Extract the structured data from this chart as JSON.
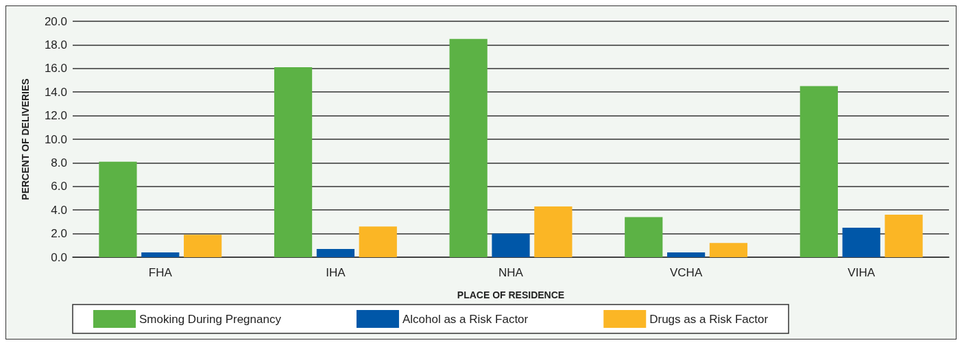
{
  "chart_data": {
    "type": "bar",
    "xlabel": "PLACE OF RESIDENCE",
    "ylabel": "PERCENT OF DELIVERIES",
    "categories": [
      "FHA",
      "IHA",
      "NHA",
      "VCHA",
      "VIHA"
    ],
    "series": [
      {
        "name": "Smoking During Pregnancy",
        "color": "#5cb245",
        "values": [
          8.1,
          16.1,
          18.5,
          3.4,
          14.5
        ]
      },
      {
        "name": "Alcohol as a Risk Factor",
        "color": "#0057a8",
        "values": [
          0.4,
          0.7,
          2.0,
          0.4,
          2.5
        ]
      },
      {
        "name": "Drugs as a Risk Factor",
        "color": "#fbb625",
        "values": [
          1.9,
          2.6,
          4.3,
          1.2,
          3.6
        ]
      }
    ],
    "ylim": [
      0,
      20
    ],
    "yticks": [
      {
        "value": 0,
        "label": "0.0"
      },
      {
        "value": 2,
        "label": "2.0"
      },
      {
        "value": 4,
        "label": "4.0"
      },
      {
        "value": 6,
        "label": "6.0"
      },
      {
        "value": 8,
        "label": "8.0"
      },
      {
        "value": 10,
        "label": "10.0"
      },
      {
        "value": 12,
        "label": "12.0"
      },
      {
        "value": 14,
        "label": "14.0"
      },
      {
        "value": 16,
        "label": "16.0"
      },
      {
        "value": 18,
        "label": "18.0"
      },
      {
        "value": 20,
        "label": "20.0"
      }
    ],
    "grid": "y",
    "legend": "bottom"
  }
}
